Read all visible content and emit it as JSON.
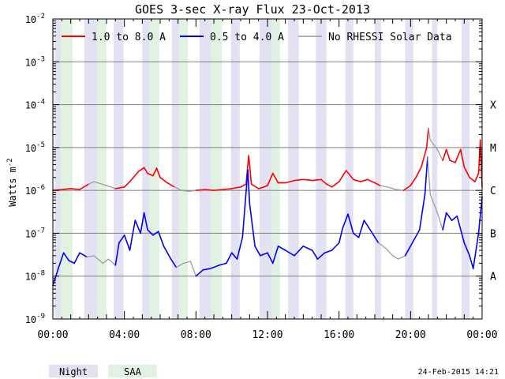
{
  "chart_data": {
    "type": "line",
    "title": "GOES 3-sec X-ray Flux   23-Oct-2013",
    "ylabel": "Watts m",
    "ylabel_sup": "-2",
    "y_scale": "log",
    "ylim": [
      1e-09,
      0.01
    ],
    "xlim_hours": [
      0,
      24
    ],
    "y_ticks": [
      {
        "base": "10",
        "exp": "-9",
        "value": 1e-09
      },
      {
        "base": "10",
        "exp": "-8",
        "value": 1e-08
      },
      {
        "base": "10",
        "exp": "-7",
        "value": 1e-07
      },
      {
        "base": "10",
        "exp": "-6",
        "value": 1e-06
      },
      {
        "base": "10",
        "exp": "-5",
        "value": 1e-05
      },
      {
        "base": "10",
        "exp": "-4",
        "value": 0.0001
      },
      {
        "base": "10",
        "exp": "-3",
        "value": 0.001
      },
      {
        "base": "10",
        "exp": "-2",
        "value": 0.01
      }
    ],
    "x_ticks": [
      {
        "label": "00:00",
        "hour": 0
      },
      {
        "label": "04:00",
        "hour": 4
      },
      {
        "label": "08:00",
        "hour": 8
      },
      {
        "label": "12:00",
        "hour": 12
      },
      {
        "label": "16:00",
        "hour": 16
      },
      {
        "label": "20:00",
        "hour": 20
      },
      {
        "label": "00:00",
        "hour": 24
      }
    ],
    "flare_classes": [
      {
        "label": "A",
        "value": 1e-08
      },
      {
        "label": "B",
        "value": 1e-07
      },
      {
        "label": "C",
        "value": 1e-06
      },
      {
        "label": "M",
        "value": 1e-05
      },
      {
        "label": "X",
        "value": 0.0001
      }
    ],
    "gridlines": "horizontal at each decade",
    "legend_position": "top",
    "legend": [
      "1.0 to 8.0 A",
      "0.5 to 4.0 A",
      "No RHESSI Solar Data"
    ],
    "band_legend": {
      "night": "Night",
      "saa": "SAA"
    },
    "footer_date": "24-Feb-2015 14:21",
    "colors": {
      "long": "#ff0000",
      "short": "#0000ff",
      "no_rhessi": "#999999",
      "night": "#e2e2f2",
      "saa": "#e2f2e2",
      "grid": "#808080"
    },
    "night_intervals": [
      [
        0.1,
        0.45
      ],
      [
        1.75,
        2.45
      ],
      [
        3.4,
        3.95
      ],
      [
        5.0,
        5.4
      ],
      [
        6.65,
        7.05
      ],
      [
        8.2,
        8.85
      ],
      [
        9.95,
        10.45
      ],
      [
        11.55,
        12.25
      ],
      [
        13.15,
        13.75
      ],
      [
        14.7,
        15.3
      ],
      [
        16.35,
        16.8
      ],
      [
        18.0,
        18.35
      ],
      [
        19.7,
        20.15
      ],
      [
        21.2,
        21.5
      ],
      [
        22.85,
        23.3
      ]
    ],
    "saa_intervals": [
      [
        0.45,
        1.1
      ],
      [
        2.45,
        3.0
      ],
      [
        5.4,
        5.95
      ],
      [
        7.05,
        7.55
      ],
      [
        8.85,
        9.45
      ],
      [
        12.25,
        12.7
      ]
    ],
    "series": [
      {
        "name": "1.0 to 8.0 A",
        "color": "#ff0000",
        "points": [
          [
            0.0,
            1e-06,
            1
          ],
          [
            0.5,
            1.05e-06,
            1
          ],
          [
            1.0,
            1.1e-06,
            1
          ],
          [
            1.5,
            1.05e-06,
            1
          ],
          [
            2.0,
            1.4e-06,
            1
          ],
          [
            2.3,
            1.6e-06,
            0
          ],
          [
            3.0,
            1.3e-06,
            0
          ],
          [
            3.5,
            1.1e-06,
            1
          ],
          [
            4.0,
            1.2e-06,
            1
          ],
          [
            4.3,
            1.6e-06,
            1
          ],
          [
            4.8,
            2.8e-06,
            1
          ],
          [
            5.1,
            3.4e-06,
            1
          ],
          [
            5.3,
            2.5e-06,
            1
          ],
          [
            5.6,
            2.2e-06,
            1
          ],
          [
            5.8,
            3.3e-06,
            1
          ],
          [
            6.0,
            2e-06,
            1
          ],
          [
            6.4,
            1.5e-06,
            1
          ],
          [
            6.8,
            1.2e-06,
            1
          ],
          [
            7.2,
            1e-06,
            0
          ],
          [
            7.6,
            9.5e-07,
            0
          ],
          [
            8.0,
            1e-06,
            1
          ],
          [
            8.5,
            1.05e-06,
            1
          ],
          [
            9.0,
            1e-06,
            1
          ],
          [
            9.5,
            1.05e-06,
            1
          ],
          [
            10.0,
            1.1e-06,
            1
          ],
          [
            10.5,
            1.2e-06,
            1
          ],
          [
            10.8,
            1.4e-06,
            1
          ],
          [
            10.95,
            6.5e-06,
            1
          ],
          [
            11.1,
            1.4e-06,
            1
          ],
          [
            11.5,
            1.1e-06,
            1
          ],
          [
            11.8,
            1.2e-06,
            1
          ],
          [
            12.0,
            1.3e-06,
            1
          ],
          [
            12.3,
            2.5e-06,
            1
          ],
          [
            12.6,
            1.5e-06,
            1
          ],
          [
            13.0,
            1.5e-06,
            1
          ],
          [
            13.5,
            1.7e-06,
            1
          ],
          [
            14.0,
            1.8e-06,
            1
          ],
          [
            14.5,
            1.7e-06,
            1
          ],
          [
            15.0,
            1.8e-06,
            1
          ],
          [
            15.3,
            1.4e-06,
            1
          ],
          [
            15.6,
            1.2e-06,
            1
          ],
          [
            16.0,
            1.6e-06,
            1
          ],
          [
            16.4,
            2.9e-06,
            1
          ],
          [
            16.8,
            1.8e-06,
            1
          ],
          [
            17.2,
            1.6e-06,
            1
          ],
          [
            17.6,
            1.8e-06,
            1
          ],
          [
            18.0,
            1.5e-06,
            1
          ],
          [
            18.3,
            1.3e-06,
            1
          ],
          [
            18.7,
            1.2e-06,
            0
          ],
          [
            19.2,
            1.05e-06,
            0
          ],
          [
            19.6,
            1e-06,
            1
          ],
          [
            20.0,
            1.3e-06,
            1
          ],
          [
            20.3,
            2e-06,
            1
          ],
          [
            20.6,
            3.5e-06,
            1
          ],
          [
            20.9,
            1e-05,
            1
          ],
          [
            21.0,
            2.8e-05,
            1
          ],
          [
            21.1,
            1.5e-05,
            0
          ],
          [
            21.5,
            9e-06,
            0
          ],
          [
            21.8,
            5e-06,
            1
          ],
          [
            22.0,
            9e-06,
            1
          ],
          [
            22.2,
            5e-06,
            1
          ],
          [
            22.5,
            4.5e-06,
            1
          ],
          [
            22.8,
            9e-06,
            1
          ],
          [
            23.0,
            3.5e-06,
            1
          ],
          [
            23.3,
            2e-06,
            1
          ],
          [
            23.6,
            1.6e-06,
            1
          ],
          [
            23.8,
            2.5e-06,
            1
          ],
          [
            23.9,
            1.5e-05,
            1
          ],
          [
            24.0,
            1.2e-06,
            1
          ]
        ]
      },
      {
        "name": "0.5 to 4.0 A",
        "color": "#0000ff",
        "points": [
          [
            0.0,
            6e-09,
            1
          ],
          [
            0.3,
            1.5e-08,
            1
          ],
          [
            0.6,
            3.5e-08,
            1
          ],
          [
            0.9,
            2.3e-08,
            1
          ],
          [
            1.2,
            2e-08,
            1
          ],
          [
            1.5,
            3.5e-08,
            1
          ],
          [
            1.9,
            2.8e-08,
            1
          ],
          [
            2.3,
            3e-08,
            0
          ],
          [
            2.8,
            2e-08,
            0
          ],
          [
            3.1,
            2.5e-08,
            0
          ],
          [
            3.5,
            1.8e-08,
            1
          ],
          [
            3.7,
            6e-08,
            1
          ],
          [
            4.0,
            9e-08,
            1
          ],
          [
            4.3,
            4e-08,
            1
          ],
          [
            4.6,
            2e-07,
            1
          ],
          [
            4.9,
            1e-07,
            1
          ],
          [
            5.1,
            3e-07,
            1
          ],
          [
            5.3,
            1.2e-07,
            1
          ],
          [
            5.6,
            9e-08,
            1
          ],
          [
            5.9,
            1.1e-07,
            1
          ],
          [
            6.2,
            5e-08,
            1
          ],
          [
            6.6,
            2.5e-08,
            1
          ],
          [
            6.9,
            1.6e-08,
            1
          ],
          [
            7.3,
            2e-08,
            0
          ],
          [
            7.7,
            2.2e-08,
            0
          ],
          [
            8.0,
            1e-08,
            1
          ],
          [
            8.4,
            1.4e-08,
            1
          ],
          [
            8.8,
            1.5e-08,
            1
          ],
          [
            9.3,
            1.8e-08,
            1
          ],
          [
            9.7,
            2e-08,
            1
          ],
          [
            10.0,
            3.5e-08,
            1
          ],
          [
            10.3,
            2.5e-08,
            1
          ],
          [
            10.6,
            8e-08,
            1
          ],
          [
            10.9,
            3e-06,
            1
          ],
          [
            11.0,
            5e-07,
            1
          ],
          [
            11.3,
            5e-08,
            1
          ],
          [
            11.6,
            3e-08,
            1
          ],
          [
            12.0,
            3.5e-08,
            1
          ],
          [
            12.3,
            2e-08,
            1
          ],
          [
            12.6,
            5e-08,
            1
          ],
          [
            13.0,
            4e-08,
            1
          ],
          [
            13.5,
            3e-08,
            1
          ],
          [
            14.0,
            5e-08,
            1
          ],
          [
            14.5,
            4e-08,
            1
          ],
          [
            14.8,
            2.5e-08,
            1
          ],
          [
            15.2,
            3.5e-08,
            1
          ],
          [
            15.6,
            4e-08,
            1
          ],
          [
            16.0,
            6e-08,
            1
          ],
          [
            16.2,
            1.3e-07,
            1
          ],
          [
            16.5,
            2.8e-07,
            1
          ],
          [
            16.8,
            1e-07,
            1
          ],
          [
            17.1,
            8e-08,
            1
          ],
          [
            17.4,
            2e-07,
            1
          ],
          [
            17.8,
            1.1e-07,
            1
          ],
          [
            18.2,
            6e-08,
            1
          ],
          [
            18.6,
            4.5e-08,
            0
          ],
          [
            19.0,
            3e-08,
            0
          ],
          [
            19.3,
            2.5e-08,
            0
          ],
          [
            19.7,
            3e-08,
            1
          ],
          [
            20.1,
            6e-08,
            1
          ],
          [
            20.5,
            1.2e-07,
            1
          ],
          [
            20.8,
            8e-07,
            1
          ],
          [
            20.95,
            6e-06,
            1
          ],
          [
            21.1,
            8e-07,
            0
          ],
          [
            21.5,
            3e-07,
            0
          ],
          [
            21.8,
            1.2e-07,
            1
          ],
          [
            22.0,
            3e-07,
            1
          ],
          [
            22.3,
            2e-07,
            1
          ],
          [
            22.6,
            2.5e-07,
            1
          ],
          [
            23.0,
            6e-08,
            1
          ],
          [
            23.3,
            3e-08,
            1
          ],
          [
            23.5,
            1.5e-08,
            1
          ],
          [
            23.8,
            1e-07,
            1
          ],
          [
            24.0,
            7e-07,
            1
          ]
        ]
      }
    ]
  }
}
